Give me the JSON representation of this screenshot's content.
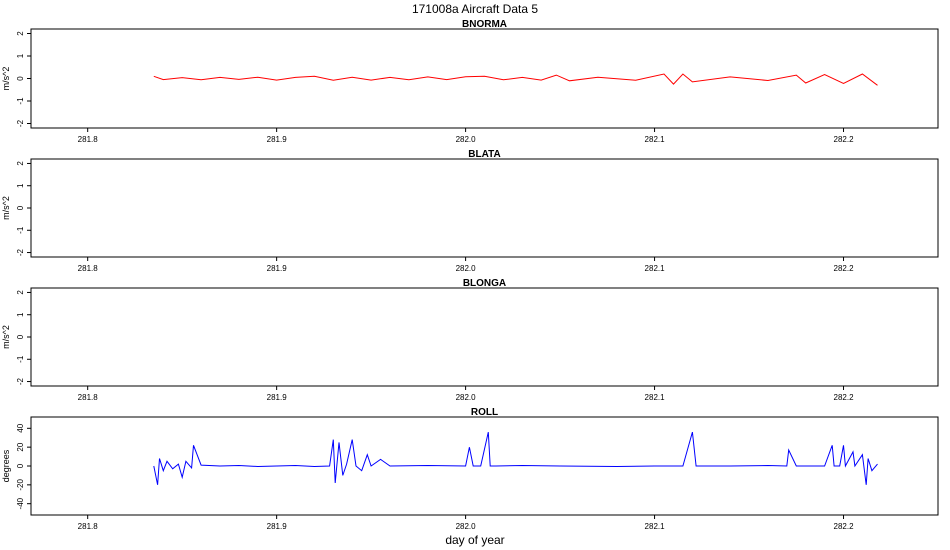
{
  "figure": {
    "title": "171008a   Aircraft Data 5",
    "xlabel": "day of year"
  },
  "chart_data": [
    {
      "type": "line",
      "title": "BNORMA",
      "ylabel": "m/s^2",
      "xlim": [
        281.77,
        282.25
      ],
      "ylim": [
        -2.2,
        2.2
      ],
      "xticks": [
        281.8,
        281.9,
        282.0,
        282.1,
        282.2
      ],
      "yticks": [
        -2,
        -1,
        0,
        1,
        2
      ],
      "color": "#ff0000",
      "series": [
        {
          "x": [
            281.835,
            281.84,
            281.85,
            281.86,
            281.87,
            281.88,
            281.89,
            281.9,
            281.91,
            281.92,
            281.93,
            281.94,
            281.95,
            281.96,
            281.97,
            281.98,
            281.99,
            282.0,
            282.01,
            282.02,
            282.03,
            282.04,
            282.048,
            282.055,
            282.07,
            282.09,
            282.105,
            282.11,
            282.115,
            282.12,
            282.14,
            282.16,
            282.175,
            282.18,
            282.19,
            282.2,
            282.21,
            282.218
          ],
          "y": [
            0.1,
            -0.05,
            0.04,
            -0.06,
            0.05,
            -0.04,
            0.06,
            -0.07,
            0.05,
            0.1,
            -0.08,
            0.06,
            -0.07,
            0.05,
            -0.06,
            0.07,
            -0.05,
            0.08,
            0.1,
            -0.06,
            0.05,
            -0.07,
            0.15,
            -0.1,
            0.06,
            -0.08,
            0.2,
            -0.25,
            0.2,
            -0.15,
            0.07,
            -0.09,
            0.15,
            -0.2,
            0.18,
            -0.22,
            0.2,
            -0.3
          ]
        }
      ]
    },
    {
      "type": "line",
      "title": "BLATA",
      "ylabel": "m/s^2",
      "xlim": [
        281.77,
        282.25
      ],
      "ylim": [
        -2.2,
        2.2
      ],
      "xticks": [
        281.8,
        281.9,
        282.0,
        282.1,
        282.2
      ],
      "yticks": [
        -2,
        -1,
        0,
        1,
        2
      ],
      "series": []
    },
    {
      "type": "line",
      "title": "BLONGA",
      "ylabel": "m/s^2",
      "xlim": [
        281.77,
        282.25
      ],
      "ylim": [
        -2.2,
        2.2
      ],
      "xticks": [
        281.8,
        281.9,
        282.0,
        282.1,
        282.2
      ],
      "yticks": [
        -2,
        -1,
        0,
        1,
        2
      ],
      "series": []
    },
    {
      "type": "line",
      "title": "ROLL",
      "ylabel": "degrees",
      "xlim": [
        281.77,
        282.25
      ],
      "ylim": [
        -52,
        52
      ],
      "xticks": [
        281.8,
        281.9,
        282.0,
        282.1,
        282.2
      ],
      "yticks": [
        -40,
        -20,
        0,
        20,
        40
      ],
      "color": "#0000ff",
      "series": [
        {
          "x": [
            281.835,
            281.837,
            281.838,
            281.84,
            281.842,
            281.845,
            281.848,
            281.85,
            281.852,
            281.855,
            281.856,
            281.86,
            281.87,
            281.88,
            281.89,
            281.9,
            281.91,
            281.92,
            281.928,
            281.93,
            281.931,
            281.933,
            281.935,
            281.937,
            281.94,
            281.942,
            281.945,
            281.948,
            281.95,
            281.955,
            281.96,
            281.98,
            282.0,
            282.002,
            282.004,
            282.008,
            282.012,
            282.013,
            282.016,
            282.03,
            282.05,
            282.08,
            282.1,
            282.115,
            282.12,
            282.122,
            282.125,
            282.14,
            282.16,
            282.17,
            282.171,
            282.175,
            282.19,
            282.194,
            282.195,
            282.198,
            282.2,
            282.201,
            282.205,
            282.206,
            282.21,
            282.212,
            282.213,
            282.215,
            282.218
          ],
          "y": [
            0,
            -20,
            8,
            -5,
            5,
            -3,
            2,
            -12,
            5,
            -2,
            22,
            1,
            0,
            0.5,
            -0.5,
            0,
            0.5,
            -0.5,
            0,
            28,
            -18,
            25,
            -10,
            2,
            28,
            0,
            -5,
            12,
            0,
            7,
            0,
            0.5,
            0,
            20,
            0,
            0,
            36,
            0,
            0,
            0.5,
            0,
            -0.5,
            0,
            0,
            36,
            0,
            0,
            0,
            0.5,
            0,
            17,
            0,
            0,
            22,
            0,
            0,
            22,
            0,
            15,
            0,
            12,
            -20,
            8,
            -5,
            2
          ]
        }
      ]
    }
  ]
}
